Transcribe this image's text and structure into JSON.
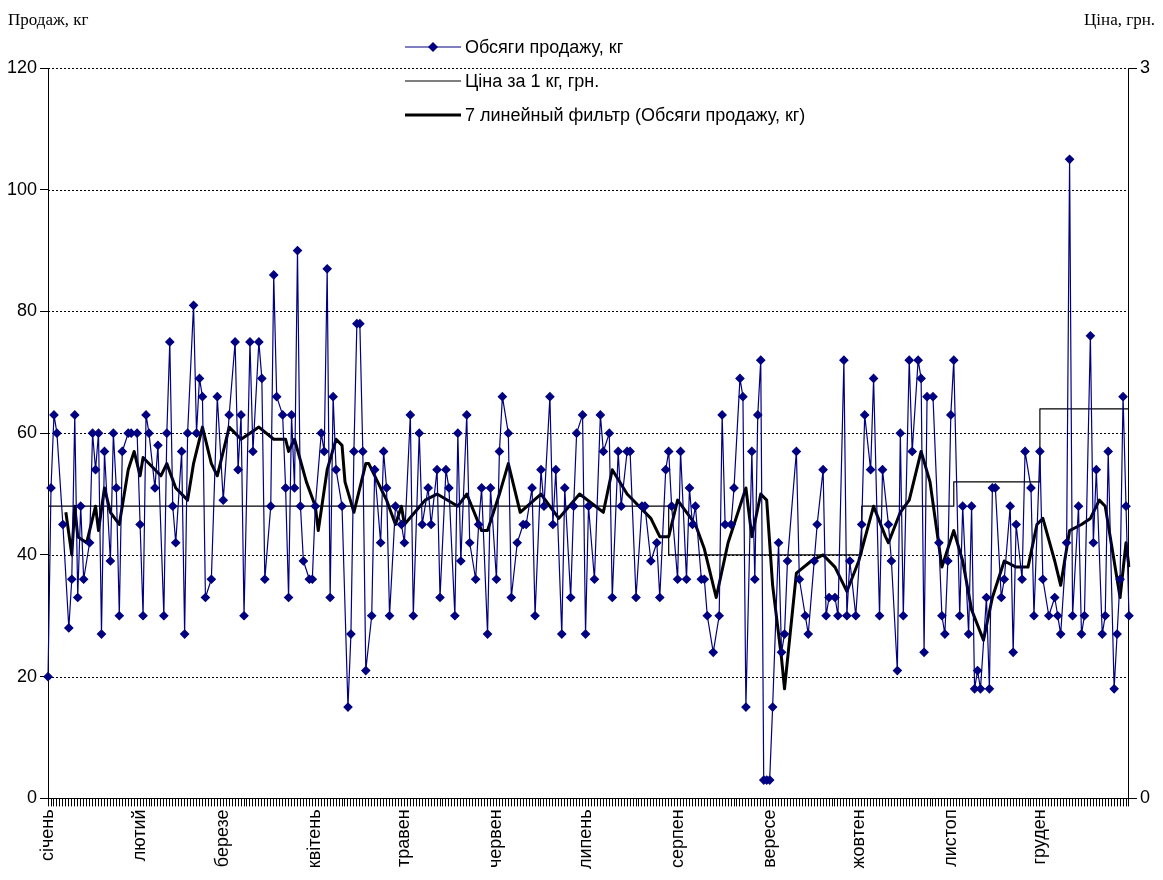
{
  "chart_data": {
    "type": "line",
    "ylabel": "Продаж, кг",
    "y2label": "Ціна, грн.",
    "categories": [
      "січень",
      null,
      null,
      null,
      null,
      null,
      null,
      null,
      null,
      null,
      null,
      null,
      null,
      null,
      null,
      null,
      null,
      null,
      null,
      null,
      null,
      null,
      null,
      null,
      null,
      null,
      null,
      null,
      null,
      null,
      null,
      "лютий",
      null,
      null,
      null,
      null,
      null,
      null,
      null,
      null,
      null,
      null,
      null,
      null,
      null,
      null,
      null,
      null,
      null,
      null,
      null,
      null,
      null,
      null,
      null,
      null,
      null,
      null,
      null,
      "березе",
      null,
      null,
      null,
      null,
      null,
      null,
      null,
      null,
      null,
      null,
      null,
      null,
      null,
      null,
      null,
      null,
      null,
      null,
      null,
      null,
      null,
      null,
      null,
      null,
      null,
      null,
      null,
      null,
      null,
      null,
      "квітень",
      null,
      null,
      null,
      null,
      null,
      null,
      null,
      null,
      null,
      null,
      null,
      null,
      null,
      null,
      null,
      null,
      null,
      null,
      null,
      null,
      null,
      null,
      null,
      null,
      null,
      null,
      null,
      null,
      null,
      "травен",
      null,
      null,
      null,
      null,
      null,
      null,
      null,
      null,
      null,
      null,
      null,
      null,
      null,
      null,
      null,
      null,
      null,
      null,
      null,
      null,
      null,
      null,
      null,
      null,
      null,
      null,
      null,
      null,
      null,
      null,
      "червен",
      null,
      null,
      null,
      null,
      null,
      null,
      null,
      null,
      null,
      null,
      null,
      null,
      null,
      null,
      null,
      null,
      null,
      null,
      null,
      null,
      null,
      null,
      null,
      null,
      null,
      null,
      null,
      null,
      null,
      "липень",
      null,
      null,
      null,
      null,
      null,
      null,
      null,
      null,
      null,
      null,
      null,
      null,
      null,
      null,
      null,
      null,
      null,
      null,
      null,
      null,
      null,
      null,
      null,
      null,
      null,
      null,
      null,
      null,
      null,
      null,
      "серпен",
      null,
      null,
      null,
      null,
      null,
      null,
      null,
      null,
      null,
      null,
      null,
      null,
      null,
      null,
      null,
      null,
      null,
      null,
      null,
      null,
      null,
      null,
      null,
      null,
      null,
      null,
      null,
      null,
      null,
      null,
      "вересе",
      null,
      null,
      null,
      null,
      null,
      null,
      null,
      null,
      null,
      null,
      null,
      null,
      null,
      null,
      null,
      null,
      null,
      null,
      null,
      null,
      null,
      null,
      null,
      null,
      null,
      null,
      null,
      null,
      null,
      "жовтен",
      null,
      null,
      null,
      null,
      null,
      null,
      null,
      null,
      null,
      null,
      null,
      null,
      null,
      null,
      null,
      null,
      null,
      null,
      null,
      null,
      null,
      null,
      null,
      null,
      null,
      null,
      null,
      null,
      null,
      null,
      "листоп",
      null,
      null,
      null,
      null,
      null,
      null,
      null,
      null,
      null,
      null,
      null,
      null,
      null,
      null,
      null,
      null,
      null,
      null,
      null,
      null,
      null,
      null,
      null,
      null,
      null,
      null,
      null,
      null,
      null,
      "груден",
      null,
      null,
      null,
      null,
      null,
      null,
      null,
      null,
      null,
      null,
      null,
      null,
      null,
      null,
      null,
      null,
      null,
      null,
      null,
      null,
      null,
      null,
      null,
      null,
      null,
      null,
      null,
      null,
      null,
      null
    ],
    "ylim": [
      0,
      120
    ],
    "yticks": [
      0,
      20,
      40,
      60,
      80,
      100,
      120
    ],
    "y2lim": [
      0,
      3
    ],
    "y2ticks": [
      0,
      3
    ],
    "grid": "y",
    "legend": "top",
    "series": [
      {
        "name": "Обсяги продажу, кг",
        "color": "#000080",
        "type": "line",
        "marker": "diamond",
        "values": [
          20,
          51,
          63,
          60,
          null,
          45,
          null,
          28,
          36,
          63,
          33,
          48,
          36,
          null,
          42,
          60,
          54,
          60,
          27,
          57,
          null,
          39,
          60,
          51,
          30,
          57,
          null,
          60,
          60,
          null,
          60,
          45,
          30,
          63,
          60,
          null,
          51,
          58,
          null,
          30,
          60,
          75,
          48,
          42,
          null,
          57,
          27,
          60,
          null,
          81,
          60,
          69,
          66,
          33,
          null,
          36,
          null,
          66,
          null,
          49,
          null,
          63,
          null,
          75,
          54,
          63,
          30,
          null,
          75,
          57,
          null,
          75,
          69,
          36,
          null,
          48,
          86,
          66,
          null,
          63,
          51,
          33,
          63,
          51,
          90,
          48,
          39,
          null,
          36,
          36,
          48,
          null,
          60,
          57,
          87,
          33,
          66,
          54,
          null,
          48,
          null,
          15,
          27,
          57,
          78,
          78,
          57,
          21,
          null,
          30,
          54,
          null,
          42,
          57,
          51,
          30,
          null,
          48,
          null,
          45,
          42,
          null,
          63,
          30,
          null,
          60,
          45,
          null,
          51,
          45,
          null,
          54,
          33,
          null,
          54,
          51,
          null,
          30,
          60,
          39,
          null,
          63,
          42,
          null,
          36,
          45,
          51,
          null,
          27,
          51,
          null,
          36,
          57,
          66,
          null,
          60,
          33,
          null,
          42,
          null,
          45,
          45,
          null,
          51,
          30,
          null,
          54,
          48,
          null,
          66,
          45,
          54,
          null,
          27,
          51,
          null,
          33,
          48,
          60,
          null,
          63,
          27,
          48,
          null,
          36,
          null,
          63,
          57,
          null,
          60,
          33,
          null,
          57,
          48,
          null,
          57,
          57,
          null,
          33,
          null,
          48,
          48,
          null,
          39,
          null,
          42,
          33,
          null,
          54,
          57,
          48,
          null,
          36,
          57,
          null,
          36,
          51,
          45,
          48,
          null,
          36,
          36,
          30,
          null,
          24,
          null,
          30,
          63,
          45,
          null,
          45,
          51,
          null,
          69,
          66,
          15,
          null,
          57,
          36,
          63,
          72,
          3,
          3,
          3,
          15,
          null,
          42,
          24,
          27,
          39,
          null,
          null,
          57,
          36,
          null,
          30,
          27,
          null,
          39,
          45,
          null,
          54,
          30,
          33,
          null,
          33,
          30,
          null,
          72,
          30,
          39,
          null,
          30,
          null,
          45,
          63,
          null,
          54,
          69,
          null,
          30,
          54,
          null,
          45,
          39,
          null,
          21,
          60,
          30,
          null,
          72,
          57,
          null,
          72,
          69,
          24,
          66,
          null,
          66,
          null,
          42,
          30,
          27,
          39,
          63,
          72,
          null,
          30,
          48,
          null,
          27,
          48,
          18,
          21,
          18,
          null,
          33,
          18,
          51,
          51,
          null,
          33,
          36,
          null,
          48,
          24,
          45,
          null,
          36,
          57,
          null,
          51,
          30,
          null,
          57,
          36,
          null,
          30,
          null,
          33,
          30,
          27,
          null,
          42,
          105,
          30,
          null,
          48,
          27,
          30,
          null,
          76,
          42,
          54,
          null,
          27,
          30,
          57,
          null,
          18,
          27,
          36,
          66,
          48,
          30
        ]
      },
      {
        "name": "Ціна за 1 кг, грн.",
        "color": "#000000",
        "type": "step",
        "axis": "y2",
        "values": [
          1.2,
          null,
          null,
          null,
          null,
          null,
          null,
          null,
          null,
          null,
          null,
          null,
          null,
          null,
          null,
          null,
          null,
          null,
          null,
          null,
          null,
          null,
          null,
          null,
          null,
          null,
          null,
          null,
          null,
          null,
          null,
          null,
          null,
          null,
          null,
          null,
          null,
          null,
          null,
          null,
          null,
          null,
          null,
          null,
          null,
          null,
          null,
          null,
          null,
          null,
          null,
          null,
          null,
          null,
          null,
          null,
          null,
          null,
          null,
          null,
          null,
          null,
          null,
          null,
          null,
          null,
          null,
          null,
          null,
          null,
          null,
          null,
          null,
          null,
          null,
          null,
          null,
          null,
          null,
          null,
          null,
          null,
          null,
          null,
          null,
          null,
          null,
          null,
          null,
          null,
          null,
          null,
          null,
          null,
          null,
          null,
          null,
          null,
          null,
          null,
          null,
          null,
          null,
          null,
          null,
          null,
          null,
          null,
          null,
          null,
          null,
          null,
          null,
          null,
          null,
          null,
          null,
          null,
          null,
          null,
          null,
          null,
          null,
          null,
          null,
          null,
          null,
          null,
          null,
          null,
          null,
          null,
          null,
          null,
          null,
          null,
          null,
          null,
          null,
          null,
          null,
          null,
          null,
          null,
          null,
          null,
          null,
          null,
          null,
          null,
          null,
          null,
          null,
          null,
          null,
          null,
          null,
          null,
          null,
          null,
          null,
          null,
          null,
          null,
          null,
          null,
          null,
          null,
          null,
          null,
          null,
          null,
          null,
          null,
          null,
          null,
          null,
          null,
          null,
          null,
          null,
          null,
          null,
          null,
          null,
          null,
          null,
          null,
          null,
          null,
          null,
          null,
          null,
          null,
          null,
          null,
          null,
          null,
          null,
          null,
          null,
          null,
          null,
          null,
          null,
          null,
          null,
          null,
          null,
          1.0,
          null,
          null,
          null,
          null,
          null,
          null,
          null,
          null,
          null,
          null,
          null,
          null,
          null,
          null,
          null,
          null,
          null,
          null,
          null,
          null,
          null,
          null,
          null,
          null,
          null,
          null,
          null,
          null,
          null,
          null,
          null,
          null,
          null,
          null,
          null,
          null,
          null,
          null,
          null,
          null,
          null,
          null,
          null,
          null,
          null,
          null,
          null,
          null,
          null,
          null,
          null,
          null,
          null,
          null,
          null,
          null,
          null,
          null,
          null,
          null,
          null,
          null,
          null,
          null,
          1.2,
          null,
          null,
          null,
          null,
          null,
          null,
          null,
          null,
          null,
          null,
          null,
          null,
          null,
          null,
          null,
          null,
          null,
          null,
          null,
          null,
          null,
          null,
          null,
          null,
          null,
          null,
          null,
          null,
          null,
          null,
          1.3,
          null,
          null,
          null,
          null,
          null,
          null,
          null,
          null,
          null,
          null,
          null,
          null,
          null,
          null,
          null,
          null,
          null,
          null,
          null,
          null,
          null,
          null,
          null,
          null,
          null,
          null,
          null,
          null,
          1.6,
          null,
          null,
          null,
          null,
          null,
          null,
          null,
          null,
          null,
          null,
          null,
          null,
          null,
          null,
          null,
          null,
          null,
          null,
          null,
          null,
          null,
          null,
          null,
          null,
          null,
          null,
          null,
          null,
          null,
          1.6
        ]
      },
      {
        "name": "7 линейный фильтр (Обсяги продажу, кг)",
        "color": "#000000",
        "type": "line",
        "values": [
          null,
          null,
          null,
          null,
          null,
          null,
          47,
          null,
          40,
          48,
          43,
          null,
          null,
          42,
          null,
          null,
          48,
          44,
          null,
          51,
          null,
          47,
          null,
          null,
          45,
          null,
          null,
          54,
          null,
          57,
          null,
          53,
          56,
          null,
          null,
          null,
          null,
          null,
          53,
          null,
          55,
          null,
          null,
          51,
          null,
          null,
          null,
          49,
          null,
          55,
          null,
          null,
          61,
          null,
          null,
          55,
          null,
          53,
          null,
          null,
          null,
          61,
          null,
          null,
          null,
          59,
          null,
          null,
          null,
          null,
          null,
          61,
          null,
          null,
          null,
          null,
          59,
          null,
          null,
          null,
          59,
          57,
          null,
          59,
          null,
          null,
          null,
          52,
          null,
          null,
          48,
          44,
          null,
          null,
          54,
          null,
          null,
          59,
          null,
          58,
          52,
          null,
          null,
          47,
          null,
          null,
          null,
          55,
          55,
          null,
          null,
          null,
          null,
          null,
          49,
          null,
          null,
          45,
          null,
          48,
          45,
          null,
          null,
          null,
          null,
          null,
          null,
          49,
          null,
          null,
          null,
          50,
          null,
          null,
          null,
          null,
          null,
          null,
          48,
          null,
          null,
          50,
          null,
          null,
          null,
          null,
          44,
          null,
          44,
          null,
          null,
          null,
          50,
          null,
          null,
          55,
          null,
          null,
          null,
          47,
          null,
          null,
          null,
          null,
          null,
          null,
          50,
          null,
          null,
          null,
          null,
          null,
          46,
          null,
          null,
          null,
          null,
          null,
          null,
          50,
          null,
          null,
          null,
          null,
          null,
          null,
          null,
          47,
          null,
          null,
          54,
          null,
          null,
          null,
          null,
          50,
          null,
          null,
          null,
          null,
          null,
          null,
          null,
          46,
          null,
          null,
          43,
          null,
          null,
          43,
          null,
          null,
          49,
          null,
          null,
          null,
          null,
          null,
          45,
          null,
          null,
          41,
          null,
          null,
          null,
          33,
          null,
          null,
          null,
          42,
          null,
          null,
          null,
          null,
          null,
          51,
          null,
          43,
          null,
          null,
          50,
          null,
          49,
          null,
          35,
          null,
          null,
          23,
          18,
          null,
          null,
          null,
          37,
          null,
          null,
          null,
          null,
          39,
          null,
          null,
          null,
          40,
          null,
          null,
          null,
          38,
          null,
          null,
          null,
          34,
          null,
          null,
          null,
          39,
          null,
          null,
          null,
          null,
          48,
          null,
          null,
          null,
          43,
          42,
          null,
          null,
          null,
          47,
          null,
          null,
          49,
          null,
          null,
          null,
          57,
          null,
          null,
          52,
          null,
          null,
          null,
          38,
          null,
          null,
          null,
          44,
          null,
          null,
          39,
          null,
          null,
          31,
          null,
          null,
          null,
          26,
          null,
          null,
          33,
          null,
          null,
          null,
          39,
          null,
          null,
          null,
          38,
          null,
          null,
          null,
          38,
          null,
          null,
          45,
          null,
          46,
          null,
          null,
          null,
          39,
          null,
          35,
          null,
          null,
          44,
          null,
          null,
          null,
          45,
          null,
          null,
          46,
          null,
          null,
          49,
          null,
          48,
          null,
          42,
          null,
          null,
          33,
          null,
          42,
          38
        ]
      }
    ]
  }
}
